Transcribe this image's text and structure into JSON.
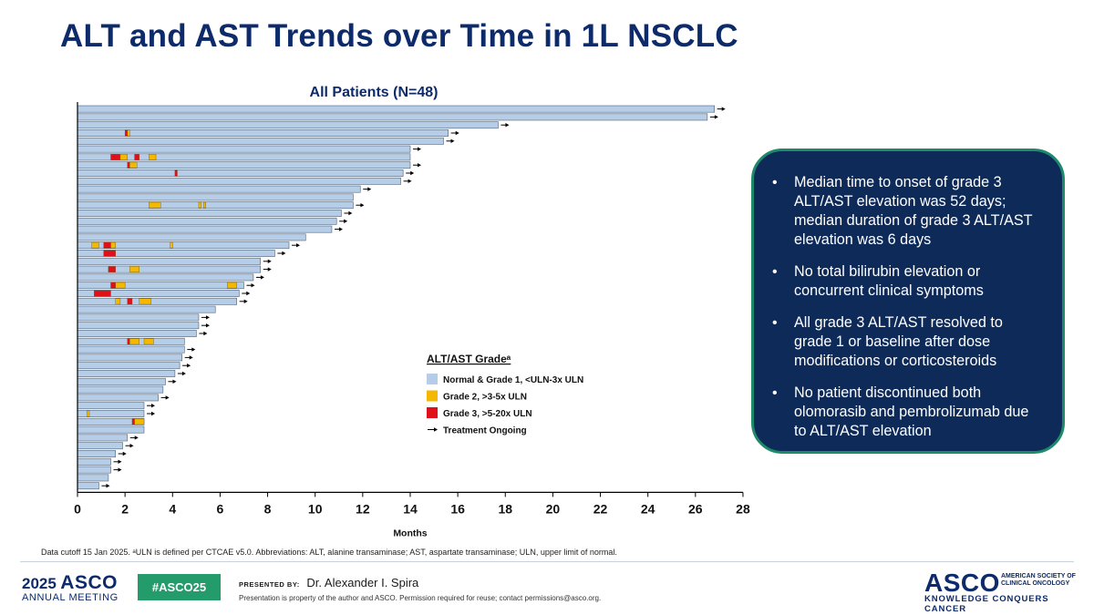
{
  "slide": {
    "title": "ALT and AST Trends over Time in 1L NSCLC",
    "footnote": "Data cutoff 15 Jan 2025. ᵃULN is defined per CTCAE v5.0. Abbreviations:  ALT, alanine transaminase; AST, aspartate transaminase; ULN, upper limit of normal."
  },
  "summary": {
    "bullets": [
      "Median time to onset of grade 3 ALT/AST elevation was 52 days; median duration of grade 3 ALT/AST elevation was 6 days",
      "No total bilirubin elevation or concurrent clinical symptoms",
      "All grade 3 ALT/AST resolved to grade 1 or baseline after dose modifications or corticosteroids",
      "No patient discontinued both olomorasib and pembrolizumab due to ALT/AST elevation"
    ]
  },
  "footer": {
    "meeting_year": "2025",
    "meeting_org": "ASCO",
    "meeting_name": "ANNUAL MEETING",
    "hashtag": "#ASCO25",
    "presented_by_label": "PRESENTED BY:",
    "presenter": "Dr. Alexander I. Spira",
    "permission": "Presentation is property of the author and ASCO. Permission required for reuse; contact permissions@asco.org.",
    "org_logo": "ASCO",
    "org_name": "AMERICAN SOCIETY OF CLINICAL ONCOLOGY",
    "tagline": "KNOWLEDGE CONQUERS CANCER"
  },
  "colors": {
    "title": "#0d2a6b",
    "grade1": "#b6cde8",
    "grade2": "#f5b800",
    "grade3": "#e0101a",
    "box_bg": "#0d2a59",
    "box_border": "#1e8a6a"
  },
  "chart_data": {
    "type": "swimmer",
    "title": "All Patients (N=48)",
    "xlabel": "Months",
    "xlim": [
      0,
      28
    ],
    "xticks": [
      0,
      2,
      4,
      6,
      8,
      10,
      12,
      14,
      16,
      18,
      20,
      22,
      24,
      26,
      28
    ],
    "legend": {
      "title": "ALT/AST Gradeᵃ",
      "position": "center-right",
      "items": [
        {
          "key": "g1",
          "label": "Normal & Grade 1, <ULN-3x ULN"
        },
        {
          "key": "g2",
          "label": "Grade 2, >3-5x ULN"
        },
        {
          "key": "g3",
          "label": "Grade 3, >5-20x ULN"
        },
        {
          "key": "ongoing",
          "label": "Treatment Ongoing"
        }
      ]
    },
    "patients": [
      {
        "duration": 26.8,
        "ongoing": true,
        "events": []
      },
      {
        "duration": 26.5,
        "ongoing": true,
        "events": []
      },
      {
        "duration": 17.7,
        "ongoing": true,
        "events": []
      },
      {
        "duration": 15.6,
        "ongoing": true,
        "events": [
          {
            "start": 2.0,
            "end": 2.1,
            "grade": 3
          },
          {
            "start": 2.1,
            "end": 2.2,
            "grade": 2
          }
        ]
      },
      {
        "duration": 15.4,
        "ongoing": true,
        "events": []
      },
      {
        "duration": 14.0,
        "ongoing": true,
        "events": []
      },
      {
        "duration": 14.0,
        "ongoing": false,
        "events": [
          {
            "start": 1.4,
            "end": 1.8,
            "grade": 3
          },
          {
            "start": 1.8,
            "end": 2.1,
            "grade": 2
          },
          {
            "start": 2.4,
            "end": 2.6,
            "grade": 3
          },
          {
            "start": 3.0,
            "end": 3.3,
            "grade": 2
          }
        ]
      },
      {
        "duration": 14.0,
        "ongoing": true,
        "events": [
          {
            "start": 2.1,
            "end": 2.2,
            "grade": 3
          },
          {
            "start": 2.2,
            "end": 2.5,
            "grade": 2
          }
        ]
      },
      {
        "duration": 13.7,
        "ongoing": true,
        "events": [
          {
            "start": 4.1,
            "end": 4.2,
            "grade": 3
          }
        ]
      },
      {
        "duration": 13.6,
        "ongoing": true,
        "events": []
      },
      {
        "duration": 11.9,
        "ongoing": true,
        "events": []
      },
      {
        "duration": 11.6,
        "ongoing": false,
        "events": []
      },
      {
        "duration": 11.6,
        "ongoing": true,
        "events": [
          {
            "start": 3.0,
            "end": 3.5,
            "grade": 2
          },
          {
            "start": 5.1,
            "end": 5.2,
            "grade": 2
          },
          {
            "start": 5.3,
            "end": 5.4,
            "grade": 2
          }
        ]
      },
      {
        "duration": 11.1,
        "ongoing": true,
        "events": []
      },
      {
        "duration": 10.9,
        "ongoing": true,
        "events": []
      },
      {
        "duration": 10.7,
        "ongoing": true,
        "events": []
      },
      {
        "duration": 9.6,
        "ongoing": false,
        "events": []
      },
      {
        "duration": 8.9,
        "ongoing": true,
        "events": [
          {
            "start": 0.6,
            "end": 0.9,
            "grade": 2
          },
          {
            "start": 1.1,
            "end": 1.4,
            "grade": 3
          },
          {
            "start": 1.4,
            "end": 1.6,
            "grade": 2
          },
          {
            "start": 3.9,
            "end": 4.0,
            "grade": 2
          }
        ]
      },
      {
        "duration": 8.3,
        "ongoing": true,
        "events": [
          {
            "start": 1.1,
            "end": 1.6,
            "grade": 3
          }
        ]
      },
      {
        "duration": 7.7,
        "ongoing": true,
        "events": []
      },
      {
        "duration": 7.7,
        "ongoing": true,
        "events": [
          {
            "start": 1.3,
            "end": 1.6,
            "grade": 3
          },
          {
            "start": 2.2,
            "end": 2.6,
            "grade": 2
          }
        ]
      },
      {
        "duration": 7.4,
        "ongoing": true,
        "events": []
      },
      {
        "duration": 7.0,
        "ongoing": true,
        "events": [
          {
            "start": 1.4,
            "end": 1.6,
            "grade": 3
          },
          {
            "start": 1.6,
            "end": 2.0,
            "grade": 2
          },
          {
            "start": 6.3,
            "end": 6.7,
            "grade": 2
          }
        ]
      },
      {
        "duration": 6.8,
        "ongoing": true,
        "events": [
          {
            "start": 0.7,
            "end": 1.4,
            "grade": 3
          }
        ]
      },
      {
        "duration": 6.7,
        "ongoing": true,
        "events": [
          {
            "start": 1.6,
            "end": 1.8,
            "grade": 2
          },
          {
            "start": 2.1,
            "end": 2.3,
            "grade": 3
          },
          {
            "start": 2.6,
            "end": 3.1,
            "grade": 2
          }
        ]
      },
      {
        "duration": 5.8,
        "ongoing": false,
        "events": []
      },
      {
        "duration": 5.1,
        "ongoing": true,
        "events": []
      },
      {
        "duration": 5.1,
        "ongoing": true,
        "events": []
      },
      {
        "duration": 5.0,
        "ongoing": true,
        "events": []
      },
      {
        "duration": 4.5,
        "ongoing": false,
        "events": [
          {
            "start": 2.1,
            "end": 2.2,
            "grade": 3
          },
          {
            "start": 2.2,
            "end": 2.6,
            "grade": 2
          },
          {
            "start": 2.8,
            "end": 3.2,
            "grade": 2
          }
        ]
      },
      {
        "duration": 4.5,
        "ongoing": true,
        "events": []
      },
      {
        "duration": 4.4,
        "ongoing": true,
        "events": []
      },
      {
        "duration": 4.3,
        "ongoing": true,
        "events": []
      },
      {
        "duration": 4.1,
        "ongoing": true,
        "events": []
      },
      {
        "duration": 3.7,
        "ongoing": true,
        "events": []
      },
      {
        "duration": 3.6,
        "ongoing": false,
        "events": []
      },
      {
        "duration": 3.4,
        "ongoing": true,
        "events": []
      },
      {
        "duration": 2.8,
        "ongoing": true,
        "events": []
      },
      {
        "duration": 2.8,
        "ongoing": true,
        "events": [
          {
            "start": 0.4,
            "end": 0.5,
            "grade": 2
          }
        ]
      },
      {
        "duration": 2.8,
        "ongoing": false,
        "events": [
          {
            "start": 2.3,
            "end": 2.4,
            "grade": 3
          },
          {
            "start": 2.4,
            "end": 2.8,
            "grade": 2
          }
        ]
      },
      {
        "duration": 2.8,
        "ongoing": false,
        "events": []
      },
      {
        "duration": 2.1,
        "ongoing": true,
        "events": []
      },
      {
        "duration": 1.9,
        "ongoing": true,
        "events": []
      },
      {
        "duration": 1.6,
        "ongoing": true,
        "events": []
      },
      {
        "duration": 1.4,
        "ongoing": true,
        "events": []
      },
      {
        "duration": 1.4,
        "ongoing": true,
        "events": []
      },
      {
        "duration": 1.3,
        "ongoing": false,
        "events": []
      },
      {
        "duration": 0.9,
        "ongoing": true,
        "events": []
      }
    ]
  }
}
